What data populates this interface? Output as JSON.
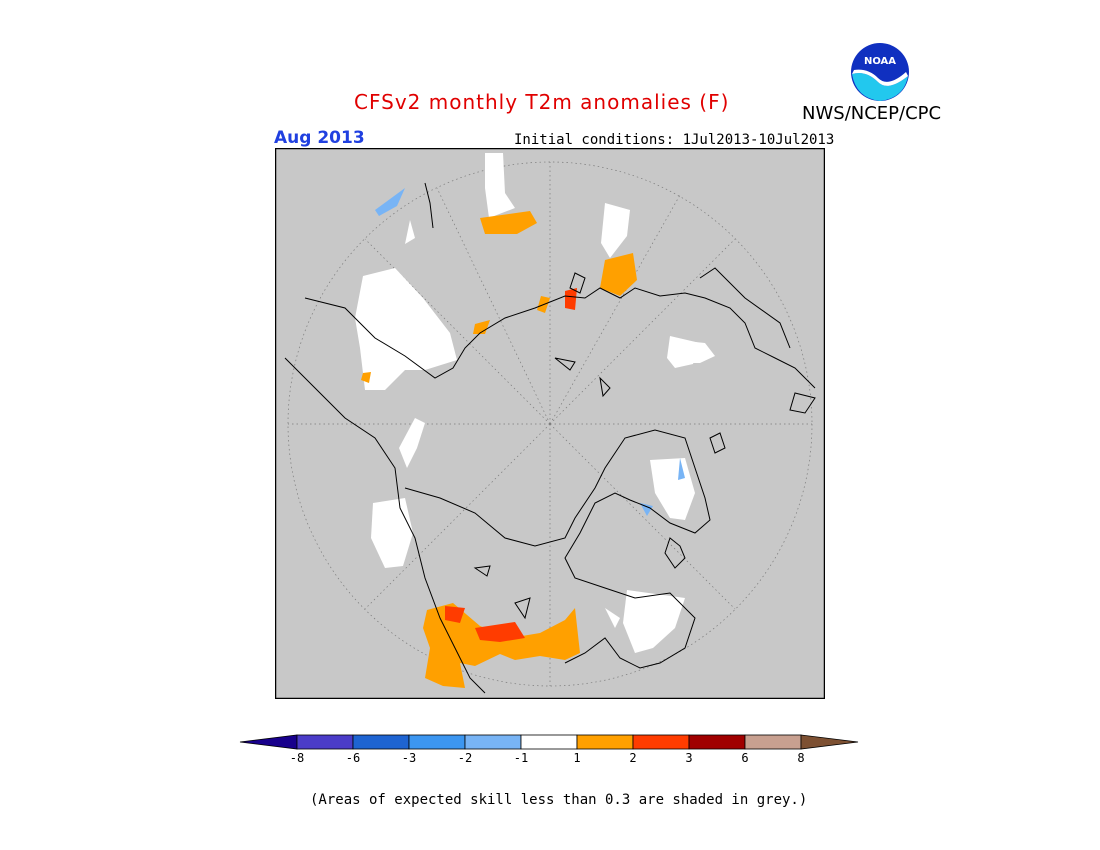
{
  "header": {
    "title": "CFSv2 monthly T2m anomalies (F)",
    "title_color": "#e00000",
    "agency": "NWS/NCEP/CPC",
    "logo_icon": "noaa-logo-icon",
    "logo_text": "NOAA",
    "month": "Aug 2013",
    "month_color": "#2040e0",
    "initial_conditions": "Initial conditions: 1Jul2013-10Jul2013"
  },
  "map": {
    "projection": "north-polar-stereographic",
    "background_color": "#c8c8c8",
    "low_skill_color": "#c8c8c8",
    "coastline_color": "#000000"
  },
  "legend": {
    "colors": [
      "#18008c",
      "#4b3cc8",
      "#1e64d2",
      "#3c96f0",
      "#78b4f5",
      "#ffffff",
      "#ffa000",
      "#ff3c00",
      "#a00000",
      "#c8a090",
      "#7d5032"
    ],
    "tick_labels": [
      "-8",
      "-6",
      "-3",
      "-2",
      "-1",
      "1",
      "2",
      "3",
      "6",
      "8"
    ]
  },
  "footnote": "(Areas of expected skill less than 0.3 are shaded in grey.)"
}
